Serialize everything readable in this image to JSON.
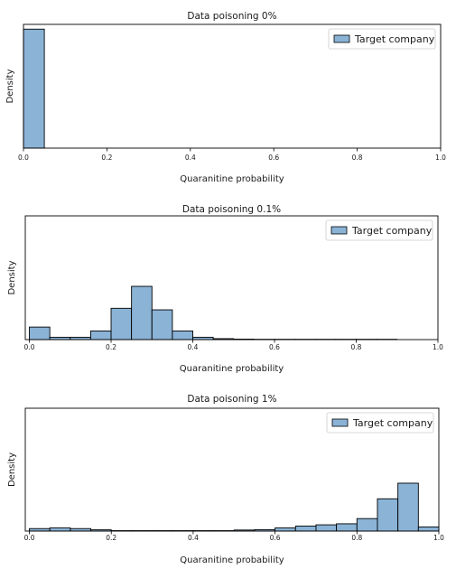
{
  "chart_data": [
    {
      "type": "bar",
      "title": "Data poisoning 0%",
      "xlabel": "Quaranitine probability",
      "ylabel": "Density",
      "xlim": [
        0.0,
        1.0
      ],
      "ylim": [
        0,
        20.8
      ],
      "xticks": [
        "0.0",
        "0.2",
        "0.4",
        "0.6",
        "0.8",
        "1.0"
      ],
      "bin_width": 0.05,
      "series": [
        {
          "name": "Target company",
          "color": "#8ab3d6",
          "bins": [
            [
              0.0,
              20.0
            ]
          ]
        }
      ],
      "grid": false,
      "legend_position": "top-right"
    },
    {
      "type": "bar",
      "title": "Data poisoning 0.1%",
      "xlabel": "Quaranitine probability",
      "ylabel": "Density",
      "xlim": [
        -0.01,
        1.0
      ],
      "ylim": [
        0,
        7.9
      ],
      "xticks": [
        "0.0",
        "0.2",
        "0.4",
        "0.6",
        "0.8",
        "1.0"
      ],
      "bin_width": 0.05,
      "series": [
        {
          "name": "Target company",
          "color": "#8ab3d6",
          "bins": [
            [
              0.0,
              0.8
            ],
            [
              0.05,
              0.15
            ],
            [
              0.1,
              0.15
            ],
            [
              0.15,
              0.55
            ],
            [
              0.2,
              2.0
            ],
            [
              0.25,
              3.4
            ],
            [
              0.3,
              1.9
            ],
            [
              0.35,
              0.55
            ],
            [
              0.4,
              0.15
            ],
            [
              0.45,
              0.06
            ],
            [
              0.5,
              0.03
            ],
            [
              0.55,
              0.02
            ],
            [
              0.6,
              0.02
            ],
            [
              0.65,
              0.02
            ],
            [
              0.7,
              0.02
            ],
            [
              0.75,
              0.02
            ],
            [
              0.8,
              0.02
            ],
            [
              0.85,
              0.02
            ]
          ]
        }
      ],
      "grid": false,
      "legend_position": "top-right"
    },
    {
      "type": "bar",
      "title": "Data poisoning 1%",
      "xlabel": "Quaranitine probability",
      "ylabel": "Density",
      "xlim": [
        -0.01,
        1.0
      ],
      "ylim": [
        0,
        5.9
      ],
      "xticks": [
        "0.0",
        "0.2",
        "0.4",
        "0.6",
        "0.8",
        "1.0"
      ],
      "bin_width": 0.05,
      "series": [
        {
          "name": "Target company",
          "color": "#8ab3d6",
          "bins": [
            [
              0.0,
              0.12
            ],
            [
              0.05,
              0.15
            ],
            [
              0.1,
              0.12
            ],
            [
              0.15,
              0.06
            ],
            [
              0.2,
              0.02
            ],
            [
              0.25,
              0.02
            ],
            [
              0.3,
              0.02
            ],
            [
              0.35,
              0.02
            ],
            [
              0.4,
              0.02
            ],
            [
              0.45,
              0.02
            ],
            [
              0.5,
              0.05
            ],
            [
              0.55,
              0.07
            ],
            [
              0.6,
              0.15
            ],
            [
              0.65,
              0.24
            ],
            [
              0.7,
              0.3
            ],
            [
              0.75,
              0.35
            ],
            [
              0.8,
              0.6
            ],
            [
              0.85,
              1.55
            ],
            [
              0.9,
              2.3
            ],
            [
              0.95,
              0.2
            ]
          ]
        }
      ],
      "grid": false,
      "legend_position": "top-right"
    }
  ]
}
